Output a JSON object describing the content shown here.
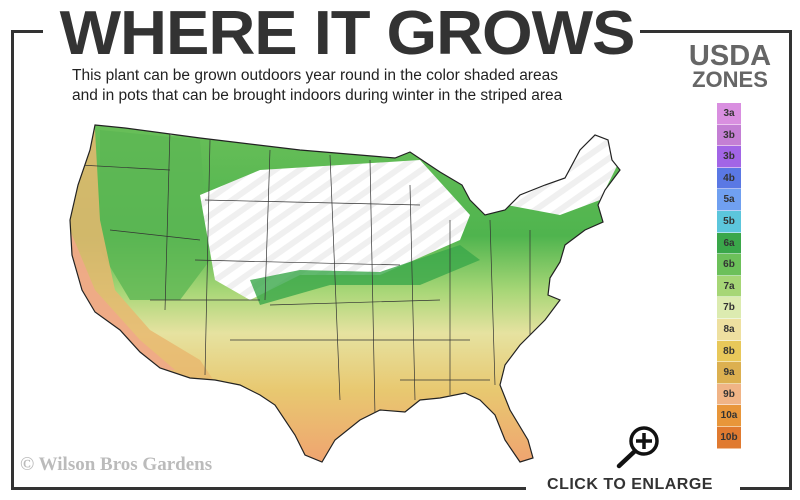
{
  "title": "WHERE IT GROWS",
  "subtitle_line1": "This plant can be grown outdoors year round in the color shaded areas",
  "subtitle_line2": "and in pots that can be brought indoors during winter in the striped area",
  "legend": {
    "title_line1": "USDA",
    "title_line2": "ZONES",
    "zones": [
      {
        "label": "3a",
        "color": "#d98fe0"
      },
      {
        "label": "3b",
        "color": "#c47fd4"
      },
      {
        "label": "3b",
        "color": "#a265e6"
      },
      {
        "label": "4b",
        "color": "#5a78e4"
      },
      {
        "label": "5a",
        "color": "#70a0f0"
      },
      {
        "label": "5b",
        "color": "#5cc6dc"
      },
      {
        "label": "6a",
        "color": "#3aa74a"
      },
      {
        "label": "6b",
        "color": "#6cc05a"
      },
      {
        "label": "7a",
        "color": "#a6d676"
      },
      {
        "label": "7b",
        "color": "#dcebb0"
      },
      {
        "label": "8a",
        "color": "#eee0a0"
      },
      {
        "label": "8b",
        "color": "#e8c85a"
      },
      {
        "label": "9a",
        "color": "#dcb050"
      },
      {
        "label": "9b",
        "color": "#f0b486"
      },
      {
        "label": "10a",
        "color": "#e8963a"
      },
      {
        "label": "10b",
        "color": "#e07a30"
      }
    ]
  },
  "copyright": "© Wilson Bros Gardens",
  "enlarge_label": "CLICK TO ENLARGE",
  "icons": {
    "enlarge": "zoom-in-magnifier-icon"
  }
}
